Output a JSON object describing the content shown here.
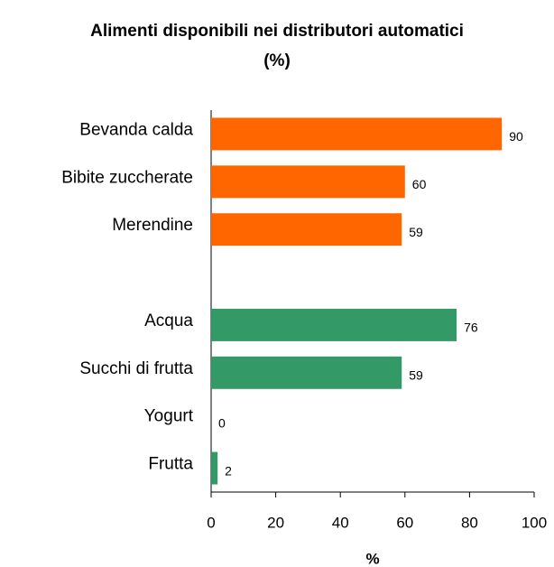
{
  "chart_data": {
    "type": "barh",
    "title": [
      "Alimenti disponibili nei distributori automatici",
      "(%)"
    ],
    "categories": [
      "Bevanda calda",
      "Bibite zuccherate",
      "Merendine",
      null,
      "Acqua",
      "Succhi di frutta",
      "Yogurt",
      "Frutta"
    ],
    "values": [
      90,
      60,
      59,
      null,
      76,
      59,
      0,
      2
    ],
    "colors": [
      "#ff6600",
      "#ff6600",
      "#ff6600",
      null,
      "#339966",
      "#339966",
      "#339966",
      "#339966"
    ],
    "xlim": [
      0,
      100
    ],
    "xticks": [
      0,
      20,
      40,
      60,
      80,
      100
    ],
    "xlabel": "%",
    "grid": false
  }
}
